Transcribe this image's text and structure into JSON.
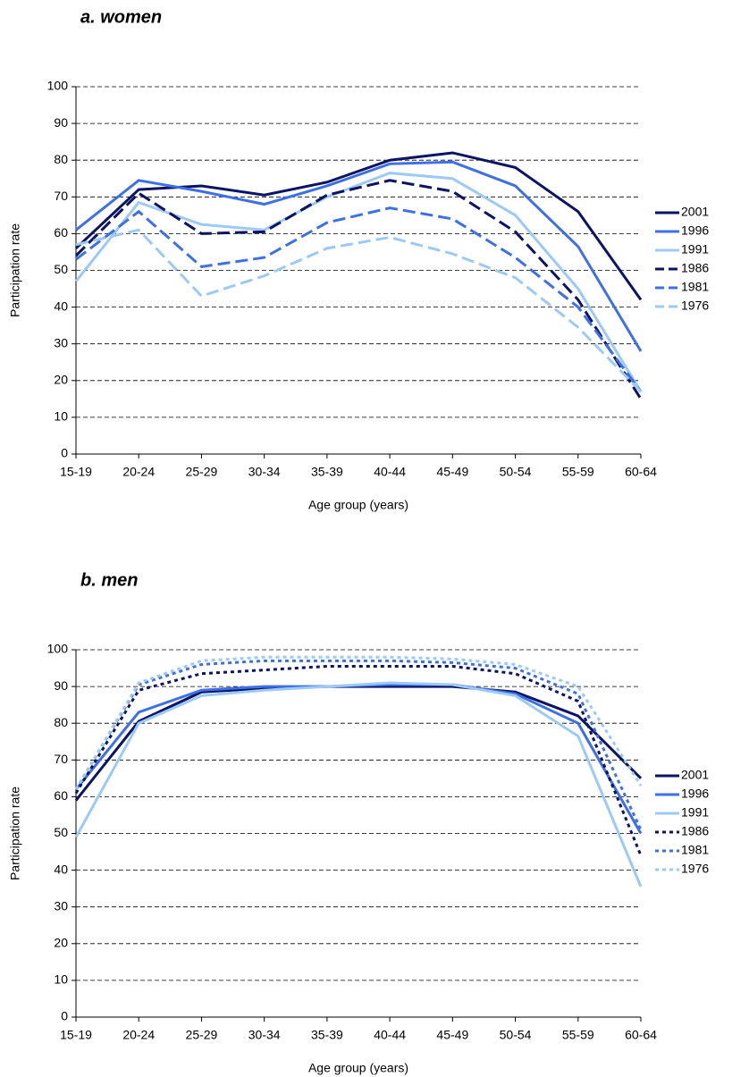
{
  "chart_data": [
    {
      "type": "line",
      "title": "a. women",
      "ylabel": "Participation rate",
      "xlabel": "Age group (years)",
      "categories": [
        "15-19",
        "20-24",
        "25-29",
        "30-34",
        "35-39",
        "40-44",
        "45-49",
        "50-54",
        "55-59",
        "60-64"
      ],
      "ylim": [
        0,
        100
      ],
      "yticks": [
        0,
        10,
        20,
        30,
        40,
        50,
        60,
        70,
        80,
        90,
        100
      ],
      "grid": true,
      "series": [
        {
          "name": "2001",
          "color": "#0b1464",
          "style": "solid",
          "values": [
            56,
            72,
            73,
            70.5,
            74,
            80,
            82,
            78,
            66,
            42
          ]
        },
        {
          "name": "1996",
          "color": "#3d6fe6",
          "style": "solid",
          "values": [
            61,
            74.5,
            71.5,
            68,
            73,
            79,
            79.5,
            73,
            56.5,
            28
          ]
        },
        {
          "name": "1991",
          "color": "#9ccaf5",
          "style": "solid",
          "values": [
            47,
            68.5,
            62.5,
            61,
            70,
            76.5,
            75,
            65,
            45,
            17
          ]
        },
        {
          "name": "1986",
          "color": "#0b1464",
          "style": "dashed",
          "values": [
            54,
            71,
            60,
            60.5,
            70.5,
            74.5,
            71.5,
            60.5,
            42,
            15
          ]
        },
        {
          "name": "1981",
          "color": "#3d6fe6",
          "style": "dashed",
          "values": [
            53,
            66,
            51,
            53.5,
            63,
            67,
            64,
            53.5,
            40,
            17
          ]
        },
        {
          "name": "1976",
          "color": "#9ccaf5",
          "style": "dashed",
          "values": [
            57,
            61,
            43,
            48.5,
            56,
            59,
            54.5,
            48,
            34.5,
            17
          ]
        }
      ]
    },
    {
      "type": "line",
      "title": "b. men",
      "ylabel": "Participation rate",
      "xlabel": "Age group (years)",
      "categories": [
        "15-19",
        "20-24",
        "25-29",
        "30-34",
        "35-39",
        "40-44",
        "45-49",
        "50-54",
        "55-59",
        "60-64"
      ],
      "ylim": [
        0,
        100
      ],
      "yticks": [
        0,
        10,
        20,
        30,
        40,
        50,
        60,
        70,
        80,
        90,
        100
      ],
      "grid": true,
      "series": [
        {
          "name": "2001",
          "color": "#0b1464",
          "style": "solid",
          "values": [
            59,
            80.5,
            88.5,
            89.5,
            90,
            90,
            90,
            88.5,
            82,
            65
          ]
        },
        {
          "name": "1996",
          "color": "#3d6fe6",
          "style": "solid",
          "values": [
            62,
            83,
            89,
            90,
            90,
            90.5,
            90.5,
            88,
            80,
            50
          ]
        },
        {
          "name": "1991",
          "color": "#9ccaf5",
          "style": "solid",
          "values": [
            49,
            80,
            87.5,
            89,
            90,
            91,
            90.5,
            87.5,
            76.5,
            35.5
          ]
        },
        {
          "name": "1986",
          "color": "#0b1464",
          "style": "dotted",
          "values": [
            61,
            89,
            93.5,
            94.5,
            95.5,
            95.5,
            95.5,
            93.5,
            86,
            44
          ]
        },
        {
          "name": "1981",
          "color": "#3d6fe6",
          "style": "dotted",
          "values": [
            62,
            90.5,
            96,
            97,
            97,
            97,
            96.5,
            95,
            88,
            51
          ]
        },
        {
          "name": "1976",
          "color": "#9ccaf5",
          "style": "dotted",
          "values": [
            62,
            91,
            97,
            98,
            98,
            98,
            97.5,
            96,
            90,
            63
          ]
        }
      ]
    }
  ]
}
